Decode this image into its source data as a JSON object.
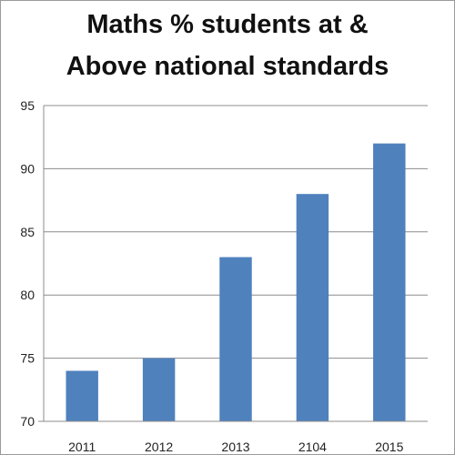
{
  "chart_data": {
    "type": "bar",
    "title_line1": "Maths % students at &",
    "title_line2": "Above national standards",
    "categories": [
      "2011",
      "2012",
      "2013",
      "2104",
      "2015"
    ],
    "values": [
      74,
      75,
      83,
      88,
      92
    ],
    "ylim": [
      70,
      95
    ],
    "yticks": [
      "70",
      "75",
      "80",
      "85",
      "90",
      "95"
    ],
    "xlabel": "",
    "ylabel": "",
    "grid": "horizontal",
    "legend": "none",
    "bar_color": "#4F81BD"
  }
}
